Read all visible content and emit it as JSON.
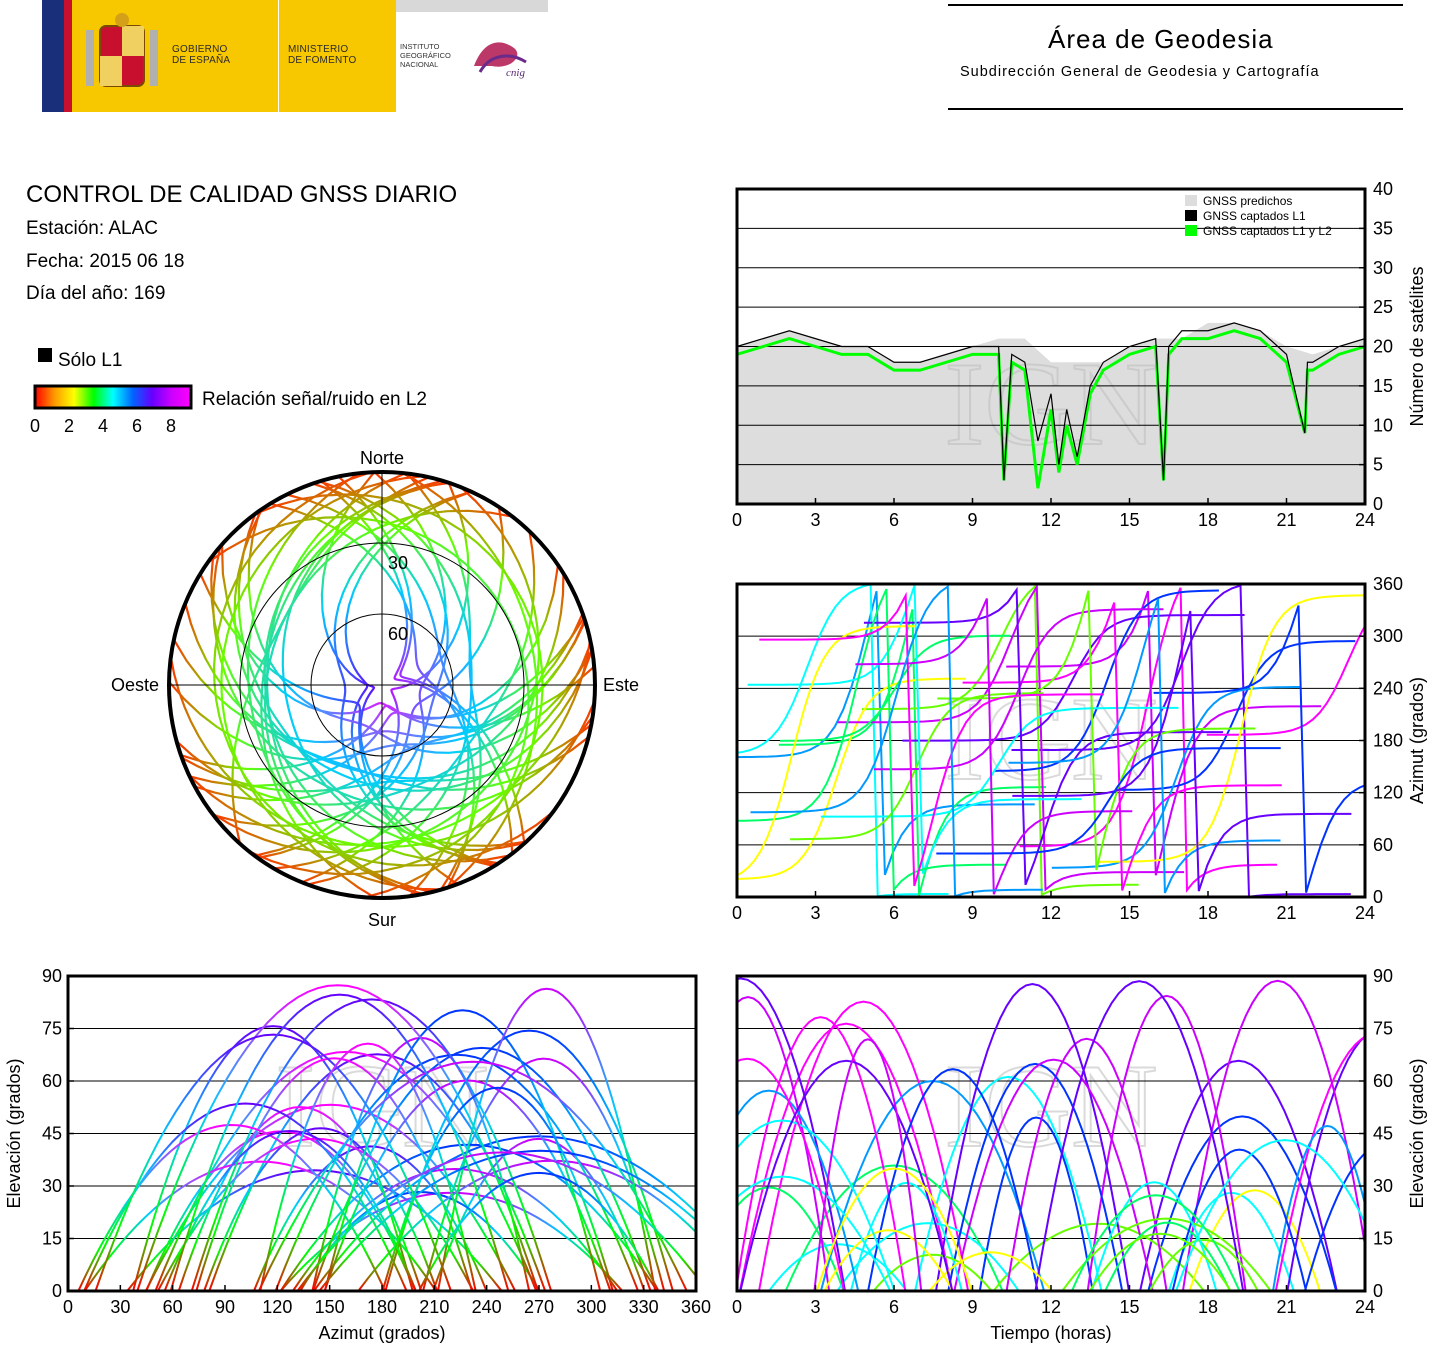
{
  "header": {
    "gov_line1": "GOBIERNO",
    "gov_line2": "DE ESPAÑA",
    "ministry_line1": "MINISTERIO",
    "ministry_line2": "DE FOMENTO",
    "ign_line1": "INSTITUTO",
    "ign_line2": "GEOGRÁFICO",
    "ign_line3": "NACIONAL",
    "cnig": "cnig",
    "area_title": "Área de Geodesia",
    "area_subtitle": "Subdirección General de Geodesia y Cartografía"
  },
  "info": {
    "title": "CONTROL DE CALIDAD GNSS DIARIO",
    "station": "Estación: ALAC",
    "date": "Fecha: 2015 06 18",
    "doy": "Día del año: 169"
  },
  "legend": {
    "l1_only": "Sólo L1",
    "snr_label": "Relación señal/ruido en L2",
    "snr_ticks": [
      "0",
      "2",
      "4",
      "6",
      "8"
    ],
    "snr_colors": [
      "#ff0000",
      "#ff9900",
      "#ffff00",
      "#00ff00",
      "#00ffff",
      "#0066ff",
      "#6600ff",
      "#cc00ff",
      "#ff00ff"
    ],
    "l1_color": "#000000"
  },
  "watermark": "IGN",
  "chart_data": [
    {
      "type": "skyplot",
      "labels": {
        "north": "Norte",
        "south": "Sur",
        "east": "Este",
        "west": "Oeste"
      },
      "ring_labels": [
        "30",
        "60"
      ],
      "rings_deg": [
        30,
        60
      ]
    },
    {
      "type": "area",
      "title": "",
      "xlabel": "",
      "ylabel": "Número de satélites",
      "xlim": [
        0,
        24
      ],
      "ylim": [
        0,
        40
      ],
      "xticks": [
        "0",
        "3",
        "6",
        "9",
        "12",
        "15",
        "18",
        "21",
        "24"
      ],
      "yticks": [
        "0",
        "5",
        "10",
        "15",
        "20",
        "25",
        "30",
        "35",
        "40"
      ],
      "legend_position": "top-right",
      "series": [
        {
          "name": "GNSS predichos",
          "color": "#dddddd",
          "x": [
            0,
            1,
            2,
            3,
            4,
            5,
            6,
            7,
            8,
            9,
            10,
            11,
            12,
            13,
            14,
            15,
            16,
            17,
            18,
            19,
            20,
            21,
            22,
            23,
            24
          ],
          "y": [
            20,
            21,
            22,
            21,
            20,
            20,
            18,
            18,
            19,
            20,
            21,
            21,
            18,
            18,
            18,
            20,
            21,
            21,
            23,
            23,
            22,
            20,
            19,
            20,
            21
          ]
        },
        {
          "name": "GNSS captados L1",
          "color": "#000000",
          "x": [
            0,
            1,
            2,
            3,
            4,
            5,
            6,
            7,
            8,
            9,
            10,
            10.2,
            10.5,
            11,
            11.5,
            12,
            12.3,
            12.6,
            13,
            13.5,
            14,
            15,
            16,
            16.3,
            16.5,
            17,
            18,
            19,
            20,
            21,
            21.7,
            21.8,
            22,
            23,
            24
          ],
          "y": [
            20,
            21,
            22,
            21,
            20,
            20,
            18,
            18,
            19,
            20,
            20,
            3,
            19,
            18,
            8,
            14,
            5,
            12,
            6,
            15,
            18,
            20,
            21,
            3,
            20,
            22,
            22,
            23,
            22,
            19,
            9,
            18,
            18,
            20,
            21
          ]
        },
        {
          "name": "GNSS captados L1 y L2",
          "color": "#00ff00",
          "x": [
            0,
            1,
            2,
            3,
            4,
            5,
            6,
            7,
            8,
            9,
            10,
            10.2,
            10.5,
            11,
            11.5,
            12,
            12.3,
            12.6,
            13,
            13.5,
            14,
            15,
            16,
            16.3,
            16.5,
            17,
            18,
            19,
            20,
            21,
            21.7,
            21.8,
            22,
            23,
            24
          ],
          "y": [
            19,
            20,
            21,
            20,
            19,
            19,
            17,
            17,
            18,
            19,
            19,
            3,
            18,
            17,
            2,
            12,
            4,
            10,
            5,
            14,
            17,
            19,
            20,
            3,
            19,
            21,
            21,
            22,
            21,
            18,
            9,
            17,
            17,
            19,
            20
          ]
        }
      ]
    },
    {
      "type": "scatter",
      "title": "",
      "xlabel": "",
      "ylabel": "Azimut (grados)",
      "xlim": [
        0,
        24
      ],
      "ylim": [
        0,
        360
      ],
      "xticks": [
        "0",
        "3",
        "6",
        "9",
        "12",
        "15",
        "18",
        "21",
        "24"
      ],
      "yticks": [
        "0",
        "60",
        "120",
        "180",
        "240",
        "300",
        "360"
      ]
    },
    {
      "type": "scatter",
      "title": "",
      "xlabel": "Azimut (grados)",
      "ylabel": "Elevación (grados)",
      "xlim": [
        0,
        360
      ],
      "ylim": [
        0,
        90
      ],
      "xticks": [
        "0",
        "30",
        "60",
        "90",
        "120",
        "150",
        "180",
        "210",
        "240",
        "270",
        "300",
        "330",
        "360"
      ],
      "yticks": [
        "0",
        "15",
        "30",
        "45",
        "60",
        "75",
        "90"
      ]
    },
    {
      "type": "scatter",
      "title": "",
      "xlabel": "Tiempo (horas)",
      "ylabel": "Elevación (grados)",
      "xlim": [
        0,
        24
      ],
      "ylim": [
        0,
        90
      ],
      "xticks": [
        "0",
        "3",
        "6",
        "9",
        "12",
        "15",
        "18",
        "21",
        "24"
      ],
      "yticks": [
        "0",
        "15",
        "30",
        "45",
        "60",
        "75",
        "90"
      ]
    }
  ]
}
